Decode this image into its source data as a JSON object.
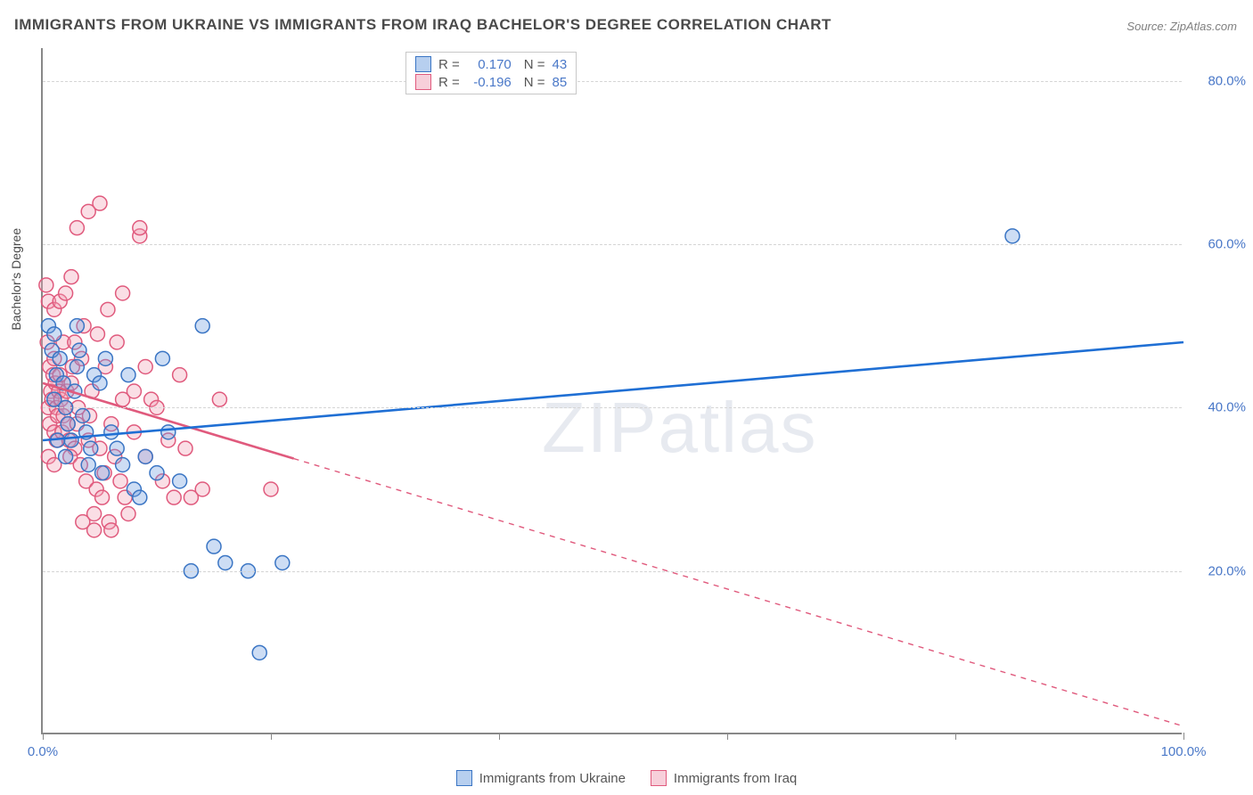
{
  "title": "IMMIGRANTS FROM UKRAINE VS IMMIGRANTS FROM IRAQ BACHELOR'S DEGREE CORRELATION CHART",
  "source_label": "Source:",
  "source_value": "ZipAtlas.com",
  "watermark": "ZIPatlas",
  "y_axis_label": "Bachelor's Degree",
  "chart": {
    "type": "scatter-with-trend",
    "xlim": [
      0,
      100
    ],
    "ylim": [
      0,
      84
    ],
    "x_ticks": [
      0,
      20,
      40,
      60,
      80,
      100
    ],
    "x_tick_labels": {
      "0": "0.0%",
      "100": "100.0%"
    },
    "y_ticks": [
      20,
      40,
      60,
      80
    ],
    "y_tick_labels": [
      "20.0%",
      "40.0%",
      "60.0%",
      "80.0%"
    ],
    "background_color": "#ffffff",
    "grid_color": "#d5d5d5",
    "axis_color": "#888888",
    "marker_radius": 8,
    "marker_opacity": 0.35,
    "trend_line_width": 2.6
  },
  "series": {
    "ukraine": {
      "label": "Immigrants from Ukraine",
      "fill_color": "#6f9fe0",
      "stroke_color": "#3a75c4",
      "R": "0.170",
      "N": "43",
      "trend": {
        "x1": 0,
        "y1": 36,
        "x2": 100,
        "y2": 48,
        "solid_until_x": 100,
        "color": "#1f6fd4"
      },
      "points": [
        [
          0.5,
          50
        ],
        [
          0.8,
          47
        ],
        [
          1.0,
          49
        ],
        [
          1.2,
          44
        ],
        [
          1.0,
          41
        ],
        [
          1.5,
          46
        ],
        [
          1.8,
          43
        ],
        [
          2.0,
          40
        ],
        [
          2.2,
          38
        ],
        [
          2.5,
          36
        ],
        [
          2.0,
          34
        ],
        [
          2.8,
          42
        ],
        [
          3.0,
          45
        ],
        [
          3.2,
          47
        ],
        [
          3.5,
          39
        ],
        [
          3.8,
          37
        ],
        [
          4.0,
          33
        ],
        [
          4.2,
          35
        ],
        [
          4.5,
          44
        ],
        [
          5.0,
          43
        ],
        [
          5.2,
          32
        ],
        [
          5.5,
          46
        ],
        [
          6.0,
          37
        ],
        [
          6.5,
          35
        ],
        [
          7.0,
          33
        ],
        [
          7.5,
          44
        ],
        [
          8.0,
          30
        ],
        [
          8.5,
          29
        ],
        [
          9.0,
          34
        ],
        [
          10.0,
          32
        ],
        [
          10.5,
          46
        ],
        [
          11.0,
          37
        ],
        [
          12.0,
          31
        ],
        [
          13.0,
          20
        ],
        [
          14.0,
          50
        ],
        [
          15.0,
          23
        ],
        [
          16.0,
          21
        ],
        [
          18.0,
          20
        ],
        [
          19.0,
          10
        ],
        [
          21.0,
          21
        ],
        [
          85.0,
          61
        ],
        [
          3.0,
          50
        ],
        [
          1.3,
          36
        ]
      ]
    },
    "iraq": {
      "label": "Immigrants from Iraq",
      "fill_color": "#f0a0b5",
      "stroke_color": "#e05a7d",
      "R": "-0.196",
      "N": "85",
      "trend": {
        "x1": 0,
        "y1": 43,
        "x2": 100,
        "y2": 1,
        "solid_until_x": 22,
        "color": "#e05a7d"
      },
      "points": [
        [
          0.3,
          55
        ],
        [
          0.5,
          53
        ],
        [
          0.4,
          48
        ],
        [
          0.6,
          45
        ],
        [
          0.7,
          42
        ],
        [
          0.5,
          40
        ],
        [
          0.8,
          41
        ],
        [
          0.6,
          38
        ],
        [
          0.9,
          44
        ],
        [
          1.0,
          46
        ],
        [
          1.1,
          43
        ],
        [
          1.2,
          40
        ],
        [
          1.0,
          37
        ],
        [
          1.3,
          39
        ],
        [
          1.4,
          42
        ],
        [
          1.5,
          44
        ],
        [
          1.2,
          36
        ],
        [
          1.6,
          41
        ],
        [
          1.8,
          39
        ],
        [
          1.7,
          37
        ],
        [
          2.0,
          40
        ],
        [
          2.1,
          42
        ],
        [
          2.2,
          38
        ],
        [
          2.3,
          36
        ],
        [
          2.5,
          43
        ],
        [
          2.6,
          45
        ],
        [
          2.8,
          35
        ],
        [
          2.4,
          34
        ],
        [
          3.0,
          38
        ],
        [
          3.1,
          40
        ],
        [
          3.3,
          33
        ],
        [
          3.4,
          46
        ],
        [
          3.6,
          50
        ],
        [
          3.8,
          31
        ],
        [
          4.0,
          36
        ],
        [
          4.1,
          39
        ],
        [
          4.3,
          42
        ],
        [
          4.5,
          27
        ],
        [
          4.7,
          30
        ],
        [
          4.8,
          49
        ],
        [
          5.0,
          35
        ],
        [
          5.2,
          29
        ],
        [
          5.4,
          32
        ],
        [
          5.5,
          45
        ],
        [
          5.7,
          52
        ],
        [
          5.8,
          26
        ],
        [
          6.0,
          38
        ],
        [
          6.3,
          34
        ],
        [
          6.5,
          48
        ],
        [
          6.8,
          31
        ],
        [
          7.0,
          54
        ],
        [
          7.2,
          29
        ],
        [
          7.5,
          27
        ],
        [
          8.0,
          37
        ],
        [
          8.5,
          61
        ],
        [
          9.0,
          34
        ],
        [
          9.5,
          41
        ],
        [
          10.0,
          40
        ],
        [
          10.5,
          31
        ],
        [
          11.0,
          36
        ],
        [
          11.5,
          29
        ],
        [
          12.0,
          44
        ],
        [
          13.0,
          29
        ],
        [
          14.0,
          30
        ],
        [
          15.5,
          41
        ],
        [
          20.0,
          30
        ],
        [
          1.0,
          52
        ],
        [
          1.5,
          53
        ],
        [
          2.0,
          54
        ],
        [
          2.5,
          56
        ],
        [
          4.0,
          64
        ],
        [
          5.0,
          65
        ],
        [
          3.0,
          62
        ],
        [
          8.5,
          62
        ],
        [
          3.5,
          26
        ],
        [
          4.5,
          25
        ],
        [
          6.0,
          25
        ],
        [
          7.0,
          41
        ],
        [
          8.0,
          42
        ],
        [
          9.0,
          45
        ],
        [
          12.5,
          35
        ],
        [
          1.8,
          48
        ],
        [
          2.8,
          48
        ],
        [
          0.5,
          34
        ],
        [
          1.0,
          33
        ]
      ]
    }
  },
  "bottom_legend": [
    {
      "key": "ukraine"
    },
    {
      "key": "iraq"
    }
  ]
}
